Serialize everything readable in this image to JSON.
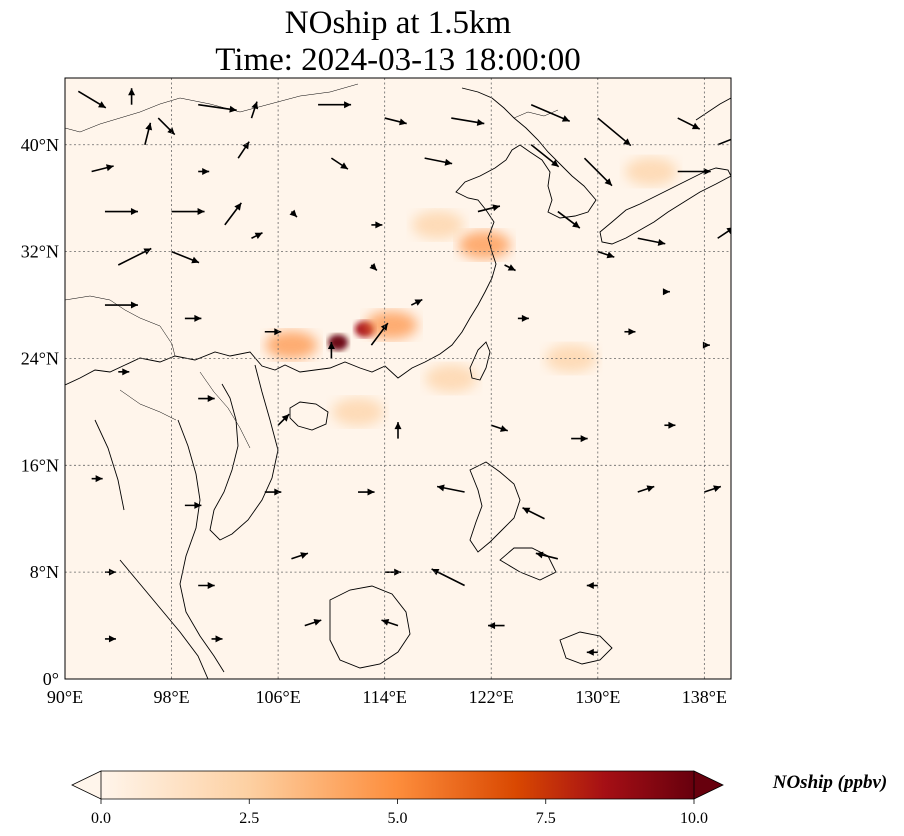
{
  "title": {
    "line1": "NOship at 1.5km",
    "line2": "Time: 2024-03-13 18:00:00"
  },
  "map": {
    "lon_range": [
      90,
      140
    ],
    "lat_range": [
      0,
      45
    ],
    "x_ticks": [
      "90°E",
      "98°E",
      "106°E",
      "114°E",
      "122°E",
      "130°E",
      "138°E"
    ],
    "y_ticks": [
      "0°",
      "8°N",
      "16°N",
      "24°N",
      "32°N",
      "40°N"
    ],
    "x_tick_values": [
      90,
      98,
      106,
      114,
      122,
      130,
      138
    ],
    "y_tick_values": [
      0,
      8,
      16,
      24,
      32,
      40
    ],
    "gridlines": true
  },
  "colorbar": {
    "label": "NOship (ppbv)",
    "ticks": [
      "0.0",
      "2.5",
      "5.0",
      "7.5",
      "10.0"
    ],
    "range": [
      0,
      10
    ],
    "colors": [
      "#fff5eb",
      "#fdd0a2",
      "#fd8d3c",
      "#d94801",
      "#a50f15",
      "#67000d"
    ]
  },
  "chart_data": {
    "type": "heatmap",
    "field": "NOship",
    "units": "ppbv",
    "vmin": 0,
    "vmax": 10,
    "extend": "both",
    "hotspots": [
      {
        "lon": 110.5,
        "lat": 25.2,
        "value": 9.5
      },
      {
        "lon": 112.5,
        "lat": 26.2,
        "value": 8.5
      },
      {
        "lon": 107,
        "lat": 25,
        "value": 3.5
      },
      {
        "lon": 114.5,
        "lat": 26.5,
        "value": 3
      },
      {
        "lon": 121.5,
        "lat": 32.5,
        "value": 3
      },
      {
        "lon": 119,
        "lat": 22.5,
        "value": 2.5
      },
      {
        "lon": 118,
        "lat": 34,
        "value": 1.5
      },
      {
        "lon": 134,
        "lat": 38,
        "value": 1.5
      },
      {
        "lon": 128,
        "lat": 24,
        "value": 1.2
      },
      {
        "lon": 112,
        "lat": 20,
        "value": 1.2
      }
    ],
    "wind_vectors": [
      {
        "lon": 91,
        "lat": 44,
        "u": 5,
        "v": -3
      },
      {
        "lon": 95,
        "lat": 43,
        "u": 0,
        "v": 3
      },
      {
        "lon": 97,
        "lat": 42,
        "u": 3,
        "v": -3
      },
      {
        "lon": 100,
        "lat": 43,
        "u": 7,
        "v": -1
      },
      {
        "lon": 104,
        "lat": 42,
        "u": 1,
        "v": 3
      },
      {
        "lon": 109,
        "lat": 43,
        "u": 6,
        "v": 0
      },
      {
        "lon": 114,
        "lat": 42,
        "u": 4,
        "v": -1
      },
      {
        "lon": 119,
        "lat": 42,
        "u": 6,
        "v": -1
      },
      {
        "lon": 125,
        "lat": 43,
        "u": 7,
        "v": -3
      },
      {
        "lon": 130,
        "lat": 42,
        "u": 6,
        "v": -5
      },
      {
        "lon": 136,
        "lat": 42,
        "u": 4,
        "v": -2
      },
      {
        "lon": 92,
        "lat": 38,
        "u": 4,
        "v": 1
      },
      {
        "lon": 96,
        "lat": 40,
        "u": 1,
        "v": 4
      },
      {
        "lon": 100,
        "lat": 38,
        "u": 2,
        "v": 0
      },
      {
        "lon": 103,
        "lat": 39,
        "u": 2,
        "v": 3
      },
      {
        "lon": 110,
        "lat": 39,
        "u": 3,
        "v": -2
      },
      {
        "lon": 117,
        "lat": 39,
        "u": 5,
        "v": -1
      },
      {
        "lon": 125,
        "lat": 40,
        "u": 5,
        "v": -4
      },
      {
        "lon": 129,
        "lat": 39,
        "u": 5,
        "v": -5
      },
      {
        "lon": 136,
        "lat": 38,
        "u": 6,
        "v": 0
      },
      {
        "lon": 139,
        "lat": 40,
        "u": 5,
        "v": 2
      },
      {
        "lon": 93,
        "lat": 35,
        "u": 6,
        "v": 0
      },
      {
        "lon": 98,
        "lat": 35,
        "u": 6,
        "v": 0
      },
      {
        "lon": 102,
        "lat": 34,
        "u": 3,
        "v": 4
      },
      {
        "lon": 107,
        "lat": 35,
        "u": 1,
        "v": -1
      },
      {
        "lon": 113,
        "lat": 34,
        "u": 2,
        "v": 0
      },
      {
        "lon": 121,
        "lat": 35,
        "u": 4,
        "v": 1
      },
      {
        "lon": 127,
        "lat": 35,
        "u": 4,
        "v": -3
      },
      {
        "lon": 133,
        "lat": 33,
        "u": 5,
        "v": -1
      },
      {
        "lon": 139,
        "lat": 33,
        "u": 3,
        "v": 2
      },
      {
        "lon": 94,
        "lat": 31,
        "u": 6,
        "v": 3
      },
      {
        "lon": 98,
        "lat": 32,
        "u": 5,
        "v": -2
      },
      {
        "lon": 104,
        "lat": 33,
        "u": 2,
        "v": 1
      },
      {
        "lon": 113,
        "lat": 31,
        "u": 1,
        "v": -1
      },
      {
        "lon": 123,
        "lat": 31,
        "u": 2,
        "v": -1
      },
      {
        "lon": 130,
        "lat": 32,
        "u": 3,
        "v": -1
      },
      {
        "lon": 135,
        "lat": 29,
        "u": 1,
        "v": 0
      },
      {
        "lon": 93,
        "lat": 28,
        "u": 6,
        "v": 0
      },
      {
        "lon": 99,
        "lat": 27,
        "u": 3,
        "v": 0
      },
      {
        "lon": 105,
        "lat": 26,
        "u": 3,
        "v": 0
      },
      {
        "lon": 110,
        "lat": 24,
        "u": 0,
        "v": 3
      },
      {
        "lon": 113,
        "lat": 25,
        "u": 3,
        "v": 4
      },
      {
        "lon": 116,
        "lat": 28,
        "u": 2,
        "v": 1
      },
      {
        "lon": 124,
        "lat": 27,
        "u": 2,
        "v": 0
      },
      {
        "lon": 132,
        "lat": 26,
        "u": 2,
        "v": 0
      },
      {
        "lon": 138,
        "lat": 25,
        "u": 1,
        "v": 0
      },
      {
        "lon": 94,
        "lat": 23,
        "u": 2,
        "v": 0
      },
      {
        "lon": 100,
        "lat": 21,
        "u": 3,
        "v": 0
      },
      {
        "lon": 106,
        "lat": 19,
        "u": 2,
        "v": 2
      },
      {
        "lon": 115,
        "lat": 18,
        "u": 0,
        "v": 3
      },
      {
        "lon": 122,
        "lat": 19,
        "u": 3,
        "v": -1
      },
      {
        "lon": 128,
        "lat": 18,
        "u": 3,
        "v": 0
      },
      {
        "lon": 135,
        "lat": 19,
        "u": 2,
        "v": 0
      },
      {
        "lon": 92,
        "lat": 15,
        "u": 2,
        "v": 0
      },
      {
        "lon": 99,
        "lat": 13,
        "u": 3,
        "v": 0
      },
      {
        "lon": 105,
        "lat": 14,
        "u": 3,
        "v": 0
      },
      {
        "lon": 112,
        "lat": 14,
        "u": 3,
        "v": 0
      },
      {
        "lon": 120,
        "lat": 14,
        "u": -5,
        "v": 1
      },
      {
        "lon": 126,
        "lat": 12,
        "u": -4,
        "v": 2
      },
      {
        "lon": 133,
        "lat": 14,
        "u": 3,
        "v": 1
      },
      {
        "lon": 138,
        "lat": 14,
        "u": 3,
        "v": 1
      },
      {
        "lon": 93,
        "lat": 8,
        "u": 2,
        "v": 0
      },
      {
        "lon": 100,
        "lat": 7,
        "u": 3,
        "v": 0
      },
      {
        "lon": 107,
        "lat": 9,
        "u": 3,
        "v": 1
      },
      {
        "lon": 114,
        "lat": 8,
        "u": 3,
        "v": 0
      },
      {
        "lon": 120,
        "lat": 7,
        "u": -6,
        "v": 3
      },
      {
        "lon": 127,
        "lat": 9,
        "u": -4,
        "v": 1
      },
      {
        "lon": 130,
        "lat": 7,
        "u": -2,
        "v": 0
      },
      {
        "lon": 93,
        "lat": 3,
        "u": 2,
        "v": 0
      },
      {
        "lon": 101,
        "lat": 3,
        "u": 2,
        "v": 0
      },
      {
        "lon": 108,
        "lat": 4,
        "u": 3,
        "v": 1
      },
      {
        "lon": 115,
        "lat": 4,
        "u": -3,
        "v": 1
      },
      {
        "lon": 123,
        "lat": 4,
        "u": -3,
        "v": 0
      },
      {
        "lon": 130,
        "lat": 2,
        "u": -2,
        "v": 0
      }
    ]
  }
}
